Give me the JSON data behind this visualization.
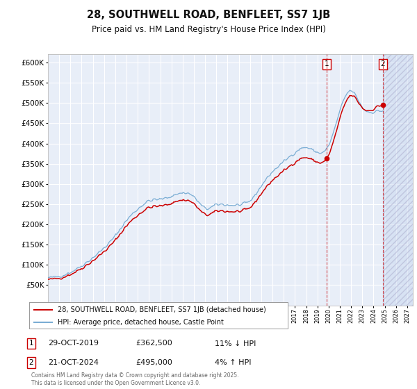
{
  "title": "28, SOUTHWELL ROAD, BENFLEET, SS7 1JB",
  "subtitle": "Price paid vs. HM Land Registry's House Price Index (HPI)",
  "title_fontsize": 10.5,
  "subtitle_fontsize": 8.5,
  "background_color": "#ffffff",
  "plot_background_color": "#e8eef8",
  "grid_color": "#ffffff",
  "hpi_color": "#7aadd4",
  "price_color": "#cc0000",
  "ylabel": "",
  "ylim": [
    0,
    620000
  ],
  "yticks": [
    0,
    50000,
    100000,
    150000,
    200000,
    250000,
    300000,
    350000,
    400000,
    450000,
    500000,
    550000,
    600000
  ],
  "xlim_start": 1995.0,
  "xlim_end": 2027.5,
  "legend_entries": [
    "28, SOUTHWELL ROAD, BENFLEET, SS7 1JB (detached house)",
    "HPI: Average price, detached house, Castle Point"
  ],
  "sale1_label": "1",
  "sale1_date": "29-OCT-2019",
  "sale1_price": "£362,500",
  "sale1_hpi": "11% ↓ HPI",
  "sale1_year": 2019.83,
  "sale1_value": 362500,
  "sale2_label": "2",
  "sale2_date": "21-OCT-2024",
  "sale2_price": "£495,000",
  "sale2_hpi": "4% ↑ HPI",
  "sale2_year": 2024.83,
  "sale2_value": 495000,
  "footer": "Contains HM Land Registry data © Crown copyright and database right 2025.\nThis data is licensed under the Open Government Licence v3.0."
}
